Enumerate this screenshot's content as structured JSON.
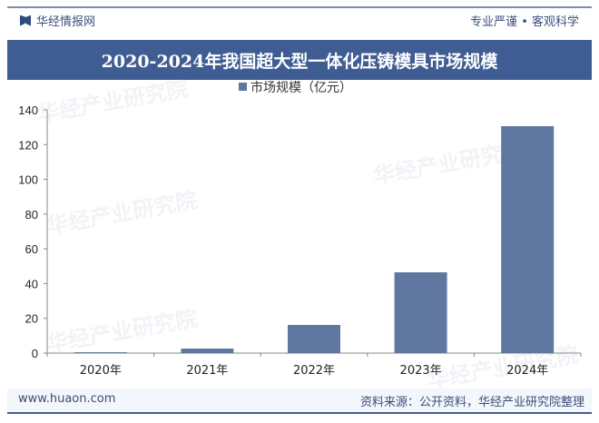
{
  "header": {
    "brand": "华经情报网",
    "slogan": "专业严谨 • 客观科学",
    "title": "2020-2024年我国超大型一体化压铸模具市场规模"
  },
  "footer": {
    "site": "www.huaon.com",
    "source": "资料来源：公开资料，华经产业研究院整理"
  },
  "watermark": "华经产业研究院",
  "chart_data": {
    "type": "bar",
    "title": "2020-2024年我国超大型一体化压铸模具市场规模",
    "categories": [
      "2020年",
      "2021年",
      "2022年",
      "2023年",
      "2024年"
    ],
    "series": [
      {
        "name": "市场规模（亿元）",
        "values": [
          0.5,
          2.6,
          16.2,
          46.5,
          130.6
        ],
        "color": "#60779f"
      }
    ],
    "yticks": [
      0,
      20,
      40,
      60,
      80,
      100,
      120,
      140
    ],
    "ylim": [
      0,
      140
    ],
    "grid": false,
    "legend": "top-center"
  }
}
